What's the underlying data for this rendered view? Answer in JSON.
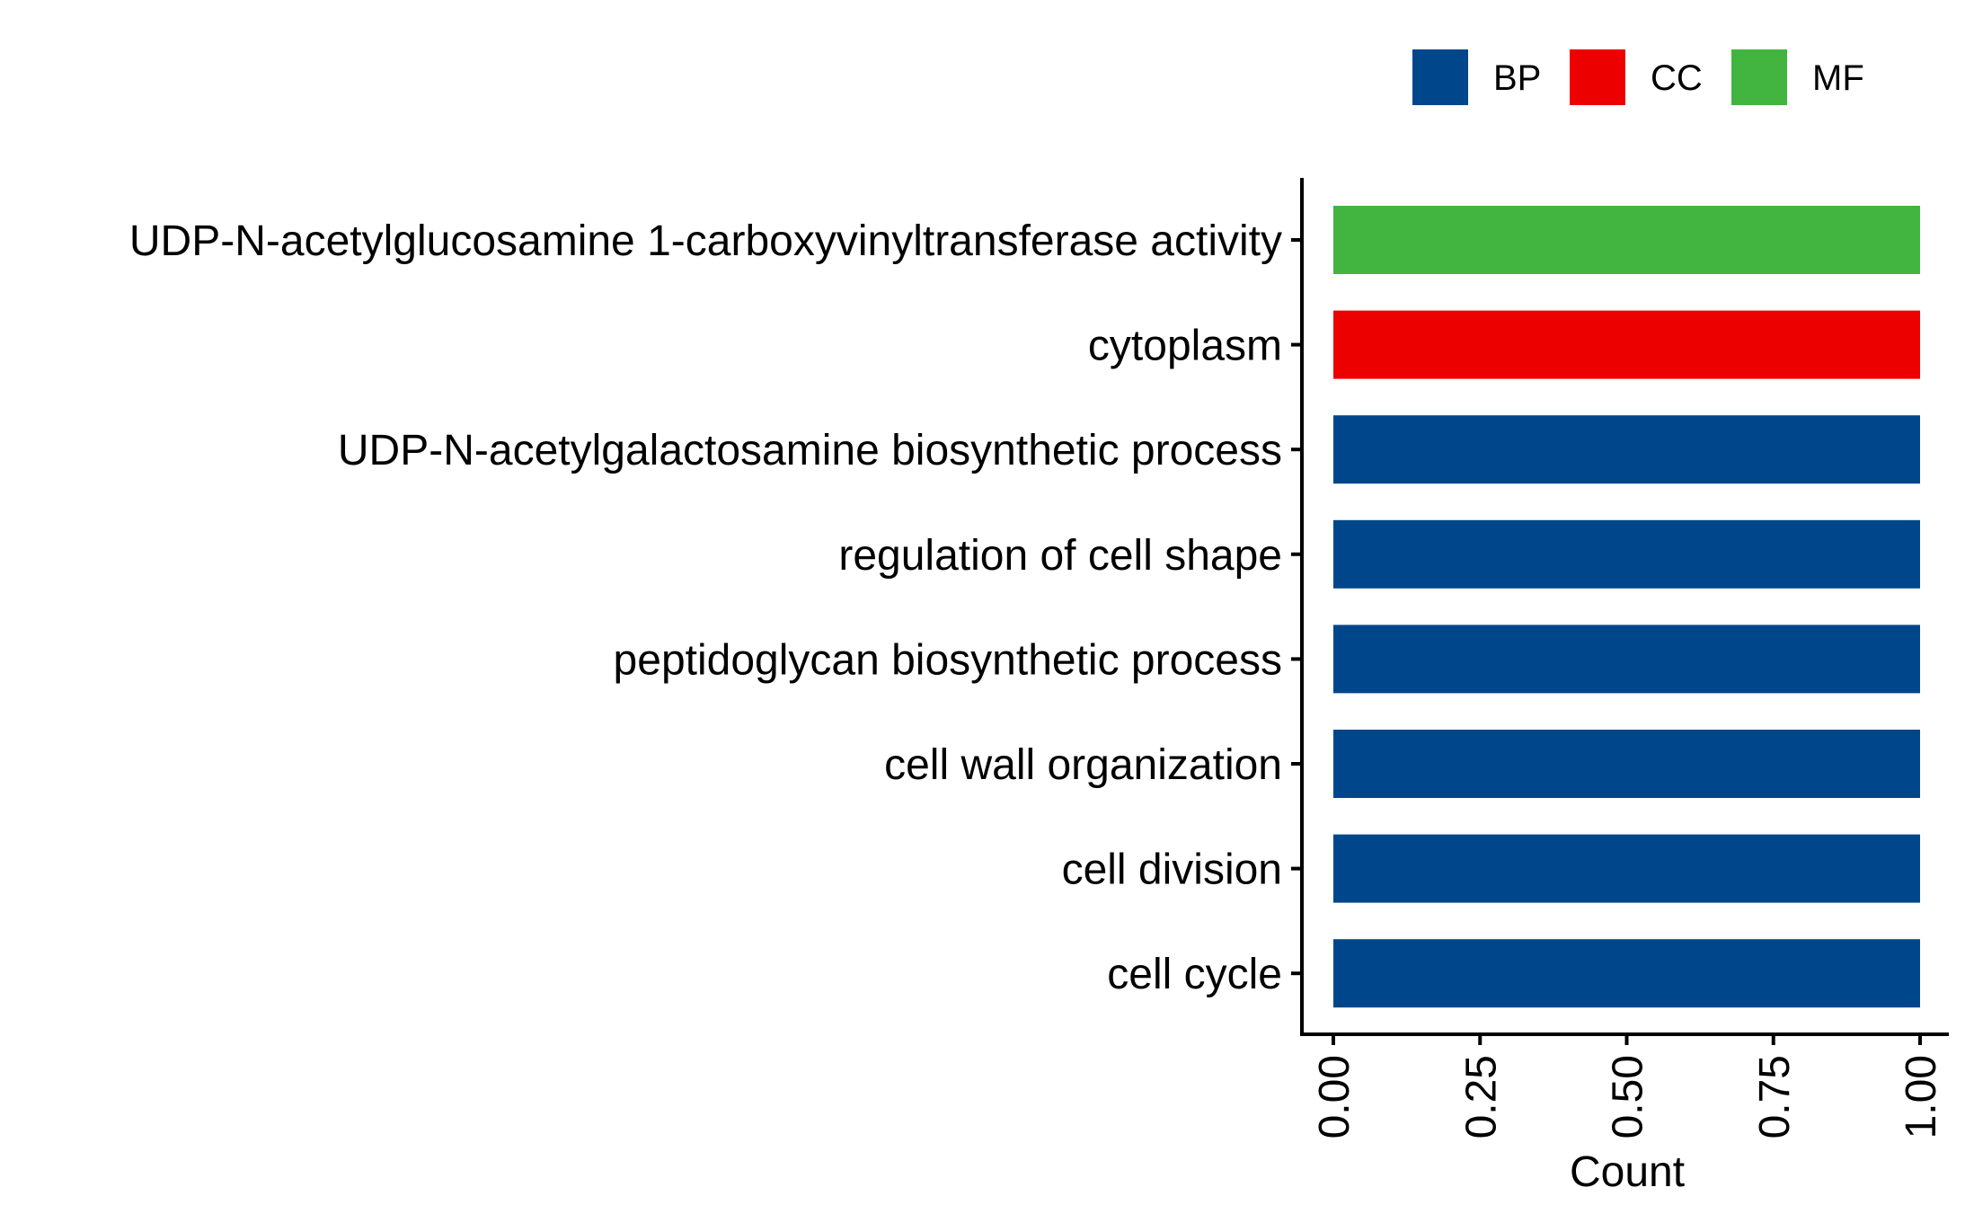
{
  "chart_data": {
    "type": "bar",
    "orientation": "horizontal",
    "categories": [
      "UDP-N-acetylglucosamine 1-carboxyvinyltransferase activity",
      "cytoplasm",
      "UDP-N-acetylgalactosamine biosynthetic process",
      "regulation of cell shape",
      "peptidoglycan biosynthetic process",
      "cell wall organization",
      "cell division",
      "cell cycle"
    ],
    "values": [
      1,
      1,
      1,
      1,
      1,
      1,
      1,
      1
    ],
    "groups": [
      "MF",
      "CC",
      "BP",
      "BP",
      "BP",
      "BP",
      "BP",
      "BP"
    ],
    "legend": {
      "position": "top-right",
      "entries": [
        {
          "name": "BP",
          "color": "#00468B"
        },
        {
          "name": "CC",
          "color": "#ED0000"
        },
        {
          "name": "MF",
          "color": "#42B540"
        }
      ]
    },
    "xlabel": "Count",
    "ylabel": "",
    "xlim": [
      0,
      1
    ],
    "xticks": [
      "0.00",
      "0.25",
      "0.50",
      "0.75",
      "1.00"
    ],
    "grid": false
  }
}
